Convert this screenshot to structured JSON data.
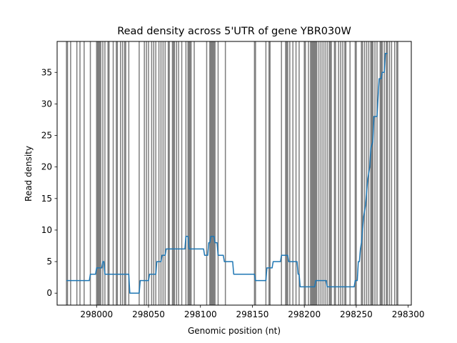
{
  "chart_data": {
    "type": "line",
    "title": "Read density across 5'UTR of gene YBR030W",
    "xlabel": "Genomic position (nt)",
    "ylabel": "Read density",
    "xlim": [
      297962,
      298303
    ],
    "ylim": [
      -1.9,
      39.9
    ],
    "x_ticks": [
      298000,
      298050,
      298100,
      298150,
      298200,
      298250,
      298300
    ],
    "y_ticks": [
      0,
      5,
      10,
      15,
      20,
      25,
      30,
      35
    ],
    "grid": false,
    "line_color": "#1f77b4",
    "vline_color": "#000000",
    "vline_opacity": 0.5,
    "vlines": [
      297971,
      297972,
      297975,
      297981,
      297984,
      297988,
      297994,
      298000,
      298001,
      298002,
      298003,
      298004,
      298006,
      298008,
      298011,
      298012,
      298016,
      298019,
      298020,
      298023,
      298025,
      298027,
      298028,
      298031,
      298041,
      298046,
      298048,
      298050,
      298053,
      298055,
      298057,
      298060,
      298062,
      298064,
      298066,
      298069,
      298070,
      298073,
      298074,
      298075,
      298077,
      298079,
      298082,
      298086,
      298088,
      298089,
      298090,
      298091,
      298094,
      298106,
      298109,
      298110,
      298111,
      298112,
      298113,
      298114,
      298117,
      298124,
      298152,
      298153,
      298163,
      298166,
      298167,
      298178,
      298182,
      298183,
      298184,
      298186,
      298189,
      298192,
      298195,
      298200,
      298201,
      298204,
      298206,
      298207,
      298208,
      298209,
      298210,
      298211,
      298212,
      298214,
      298216,
      298218,
      298220,
      298222,
      298224,
      298225,
      298226,
      298229,
      298230,
      298233,
      298235,
      298237,
      298239,
      298240,
      298244,
      298249,
      298250,
      298255,
      298256,
      298258,
      298260,
      298262,
      298264,
      298265,
      298266,
      298268,
      298270,
      298273,
      298274,
      298275,
      298277,
      298279,
      298280,
      298282,
      298284,
      298287,
      298289,
      298290
    ],
    "series": [
      {
        "points": [
          [
            297971,
            2
          ],
          [
            297993,
            2
          ],
          [
            297994,
            3
          ],
          [
            297999,
            3
          ],
          [
            298000,
            4
          ],
          [
            298005,
            4
          ],
          [
            298006,
            5
          ],
          [
            298007,
            5
          ],
          [
            298008,
            3
          ],
          [
            298031,
            3
          ],
          [
            298032,
            0
          ],
          [
            298041,
            0
          ],
          [
            298042,
            2
          ],
          [
            298050,
            2
          ],
          [
            298051,
            3
          ],
          [
            298057,
            3
          ],
          [
            298058,
            5
          ],
          [
            298062,
            5
          ],
          [
            298063,
            6
          ],
          [
            298066,
            6
          ],
          [
            298067,
            7
          ],
          [
            298085,
            7
          ],
          [
            298086,
            9
          ],
          [
            298088,
            9
          ],
          [
            298089,
            7
          ],
          [
            298103,
            7
          ],
          [
            298104,
            6
          ],
          [
            298107,
            6
          ],
          [
            298108,
            8
          ],
          [
            298109,
            8
          ],
          [
            298110,
            9
          ],
          [
            298113,
            9
          ],
          [
            298114,
            8
          ],
          [
            298116,
            8
          ],
          [
            298117,
            6
          ],
          [
            298122,
            6
          ],
          [
            298123,
            5
          ],
          [
            298131,
            5
          ],
          [
            298132,
            3
          ],
          [
            298152,
            3
          ],
          [
            298153,
            2
          ],
          [
            298160,
            2
          ],
          [
            298161,
            2
          ],
          [
            298163,
            2
          ],
          [
            298164,
            4
          ],
          [
            298169,
            4
          ],
          [
            298170,
            5
          ],
          [
            298177,
            5
          ],
          [
            298178,
            6
          ],
          [
            298184,
            6
          ],
          [
            298185,
            5
          ],
          [
            298193,
            5
          ],
          [
            298194,
            3
          ],
          [
            298195,
            3
          ],
          [
            298196,
            1
          ],
          [
            298210,
            1
          ],
          [
            298211,
            2
          ],
          [
            298221,
            2
          ],
          [
            298222,
            1
          ],
          [
            298248,
            1
          ],
          [
            298249,
            2
          ],
          [
            298251,
            2
          ],
          [
            298252,
            5
          ],
          [
            298253,
            5
          ],
          [
            298254,
            7
          ],
          [
            298255,
            8
          ],
          [
            298256,
            10
          ],
          [
            298257,
            12
          ],
          [
            298259,
            14
          ],
          [
            298260,
            16
          ],
          [
            298261,
            18
          ],
          [
            298263,
            20
          ],
          [
            298264,
            23
          ],
          [
            298266,
            24
          ],
          [
            298267,
            28
          ],
          [
            298270,
            28
          ],
          [
            298271,
            31
          ],
          [
            298272,
            34
          ],
          [
            298274,
            34
          ],
          [
            298275,
            35
          ],
          [
            298277,
            35
          ],
          [
            298278,
            38
          ],
          [
            298280,
            38
          ]
        ]
      }
    ]
  }
}
